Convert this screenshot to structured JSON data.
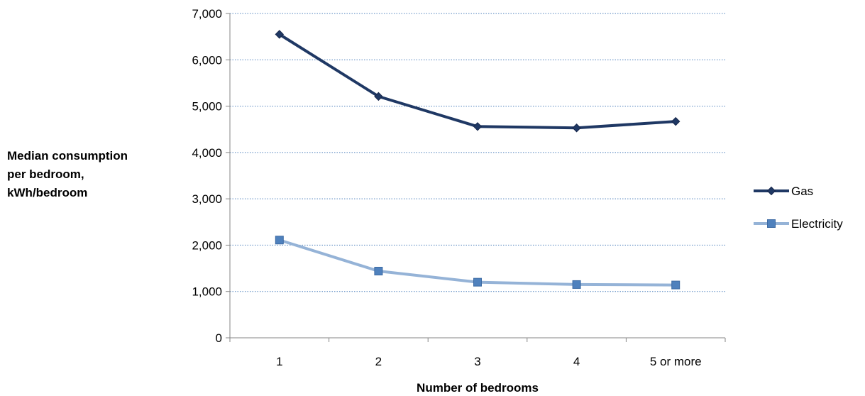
{
  "chart_data": {
    "type": "line",
    "title": "",
    "xlabel": "Number of bedrooms",
    "ylabel_lines": [
      "Median consumption",
      "per bedroom,",
      "kWh/bedroom"
    ],
    "categories": [
      "1",
      "2",
      "3",
      "4",
      "5 or more"
    ],
    "yticks": [
      "0",
      "1,000",
      "2,000",
      "3,000",
      "4,000",
      "5,000",
      "6,000",
      "7,000"
    ],
    "ylim": [
      0,
      7000
    ],
    "grid": "horizontal-dotted",
    "legend_position": "right",
    "series": [
      {
        "name": "Gas",
        "values": [
          6550,
          5210,
          4560,
          4530,
          4670
        ],
        "color": "#1f3864",
        "marker": "diamond"
      },
      {
        "name": "Electricity",
        "values": [
          2110,
          1440,
          1200,
          1150,
          1140
        ],
        "color": "#95b3d7",
        "marker_color": "#4f81bd",
        "marker": "square"
      }
    ]
  }
}
